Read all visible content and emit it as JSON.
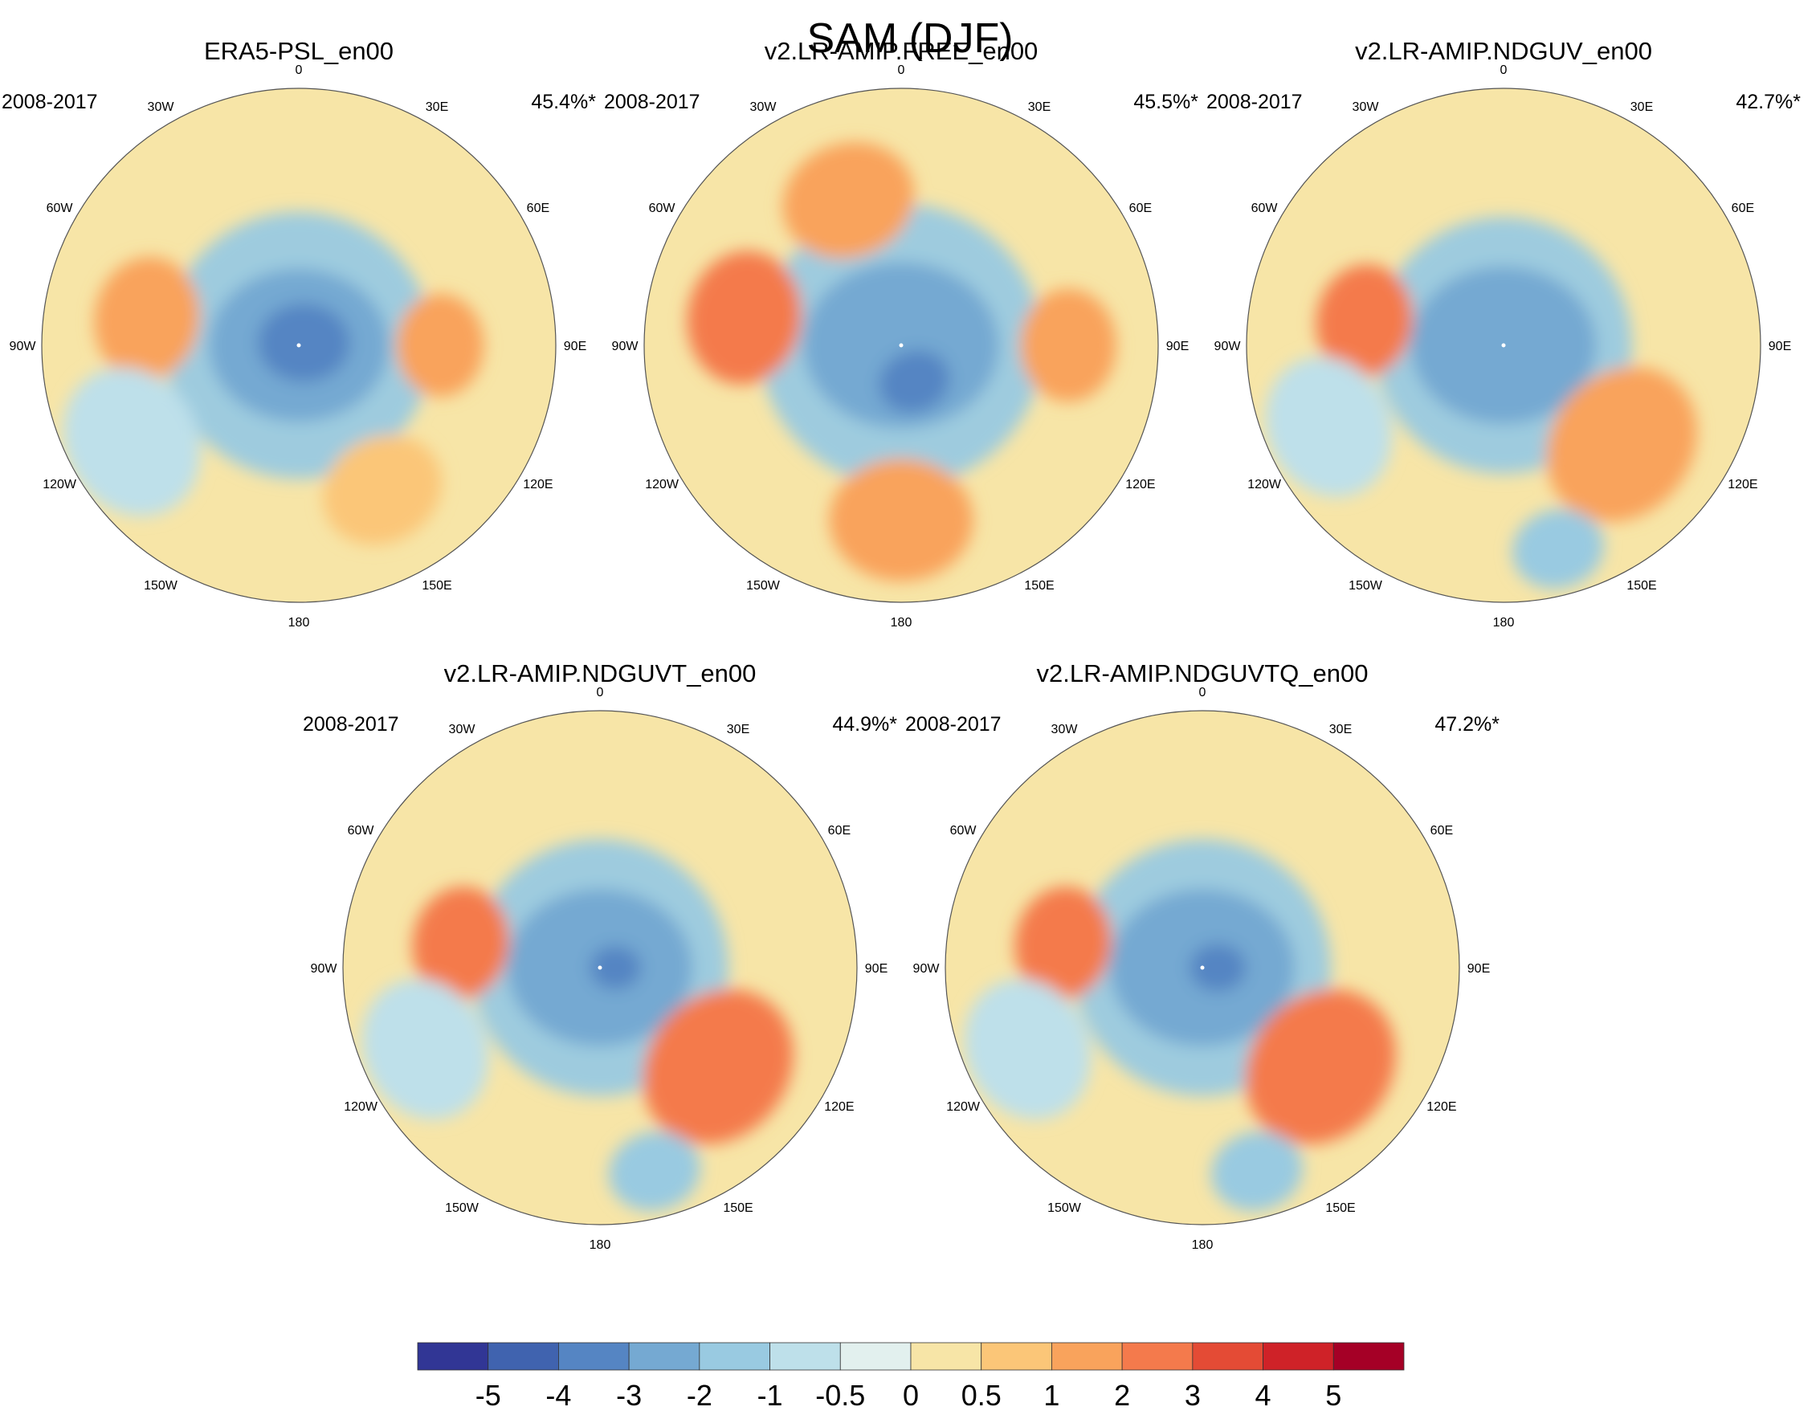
{
  "figure_title": "SAM (DJF)",
  "chart_data": {
    "type": "heatmap",
    "title": "SAM (DJF)",
    "projection": "south-polar-stereographic",
    "longitude_labels": [
      "0",
      "30E",
      "60E",
      "90E",
      "120E",
      "150E",
      "180",
      "150W",
      "120W",
      "90W",
      "60W",
      "30W"
    ],
    "colorbar": {
      "levels": [
        "-5",
        "-4",
        "-3",
        "-2",
        "-1",
        "-0.5",
        "0",
        "0.5",
        "1",
        "2",
        "3",
        "4",
        "5"
      ],
      "colors": [
        "#313695",
        "#4063af",
        "#5585c3",
        "#75a9d2",
        "#99cae1",
        "#bee0ea",
        "#e2f0ee",
        "#f7e5a7",
        "#fbc678",
        "#f9a35c",
        "#f47a4c",
        "#e44b35",
        "#cf2228",
        "#a50026"
      ]
    },
    "panels": [
      {
        "name": "ERA5-PSL_en00",
        "period": "2008-2017",
        "variance": "45.4%*",
        "features": [
          {
            "shape": "ring",
            "r": 0.52,
            "level": -1.2,
            "cx": 0,
            "cy": 0
          },
          {
            "shape": "blob",
            "lon": 0,
            "r": 0.35,
            "level": -2.5
          },
          {
            "shape": "blob",
            "lon": 0,
            "r": 0.18,
            "level": -3.6,
            "dx": 0.02,
            "dy": -0.01
          },
          {
            "shape": "blob",
            "lon": -80,
            "r": 0.24,
            "level": 1.9,
            "dist": 0.6
          },
          {
            "shape": "blob",
            "lon": 90,
            "r": 0.2,
            "level": 1.1,
            "dist": 0.55
          },
          {
            "shape": "blob",
            "lon": 150,
            "r": 0.24,
            "level": 0.8,
            "dist": 0.65
          },
          {
            "shape": "blob",
            "lon": -120,
            "r": 0.3,
            "level": -0.8,
            "dist": 0.75
          }
        ]
      },
      {
        "name": "v2.LR-AMIP.FREE_en00",
        "period": "2008-2017",
        "variance": "45.5%*",
        "features": [
          {
            "shape": "ring",
            "r": 0.55,
            "level": -1.2,
            "cx": 0,
            "cy": 0
          },
          {
            "shape": "blob",
            "lon": 0,
            "r": 0.38,
            "level": -2.5
          },
          {
            "shape": "blob",
            "lon": 160,
            "r": 0.14,
            "level": -3.6,
            "dist": 0.15
          },
          {
            "shape": "blob",
            "lon": -80,
            "r": 0.26,
            "level": 2.3,
            "dist": 0.62
          },
          {
            "shape": "blob",
            "lon": -20,
            "r": 0.26,
            "level": 1.7,
            "dist": 0.6
          },
          {
            "shape": "blob",
            "lon": 180,
            "r": 0.28,
            "level": 1.8,
            "dist": 0.68
          },
          {
            "shape": "blob",
            "lon": 90,
            "r": 0.22,
            "level": 1.2,
            "dist": 0.65
          }
        ]
      },
      {
        "name": "v2.LR-AMIP.NDGUV_en00",
        "period": "2008-2017",
        "variance": "42.7%*",
        "features": [
          {
            "shape": "ring",
            "r": 0.5,
            "level": -1.2,
            "cx": 0,
            "cy": 0
          },
          {
            "shape": "blob",
            "lon": 0,
            "r": 0.36,
            "level": -2.6
          },
          {
            "shape": "blob",
            "lon": -80,
            "r": 0.22,
            "level": 2.1,
            "dist": 0.55
          },
          {
            "shape": "blob",
            "lon": 130,
            "r": 0.32,
            "level": 1.8,
            "dist": 0.6
          },
          {
            "shape": "blob",
            "lon": 165,
            "r": 0.18,
            "level": -1.1,
            "dist": 0.82
          },
          {
            "shape": "blob",
            "lon": -115,
            "r": 0.28,
            "level": -0.6,
            "dist": 0.75
          }
        ]
      },
      {
        "name": "v2.LR-AMIP.NDGUVT_en00",
        "period": "2008-2017",
        "variance": "44.9%*",
        "features": [
          {
            "shape": "ring",
            "r": 0.5,
            "level": -1.2,
            "cx": 0,
            "cy": 0
          },
          {
            "shape": "blob",
            "lon": 0,
            "r": 0.36,
            "level": -2.6
          },
          {
            "shape": "blob",
            "lon": 0,
            "r": 0.1,
            "level": -3.6,
            "dx": 0.06,
            "dy": 0
          },
          {
            "shape": "blob",
            "lon": -80,
            "r": 0.22,
            "level": 2.2,
            "dist": 0.55
          },
          {
            "shape": "blob",
            "lon": 130,
            "r": 0.32,
            "level": 2.1,
            "dist": 0.6
          },
          {
            "shape": "blob",
            "lon": 165,
            "r": 0.18,
            "level": -1.1,
            "dist": 0.82
          },
          {
            "shape": "blob",
            "lon": -115,
            "r": 0.28,
            "level": -0.6,
            "dist": 0.75
          }
        ]
      },
      {
        "name": "v2.LR-AMIP.NDGUVTQ_en00",
        "period": "2008-2017",
        "variance": "47.2%*",
        "features": [
          {
            "shape": "ring",
            "r": 0.5,
            "level": -1.2,
            "cx": 0,
            "cy": 0
          },
          {
            "shape": "blob",
            "lon": 0,
            "r": 0.36,
            "level": -2.6
          },
          {
            "shape": "blob",
            "lon": 0,
            "r": 0.11,
            "level": -3.6,
            "dx": 0.06,
            "dy": 0
          },
          {
            "shape": "blob",
            "lon": -80,
            "r": 0.22,
            "level": 2.2,
            "dist": 0.55
          },
          {
            "shape": "blob",
            "lon": 130,
            "r": 0.32,
            "level": 2.1,
            "dist": 0.6
          },
          {
            "shape": "blob",
            "lon": 165,
            "r": 0.18,
            "level": -1.1,
            "dist": 0.82
          },
          {
            "shape": "blob",
            "lon": -115,
            "r": 0.28,
            "level": -0.6,
            "dist": 0.75
          }
        ]
      }
    ]
  }
}
